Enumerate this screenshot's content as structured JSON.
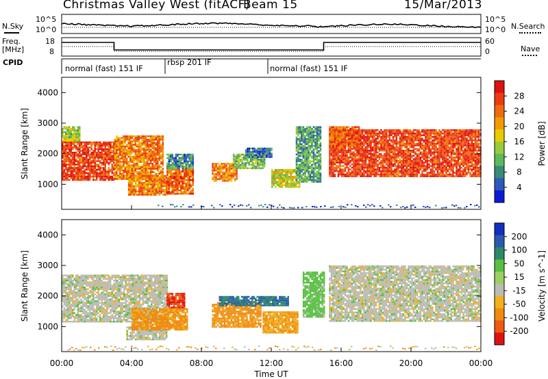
{
  "header": {
    "station_title": "Christmas Valley West (fitACF)",
    "beam_label": "Beam 15",
    "date": "15/Mar/2013"
  },
  "noise_panel": {
    "left_label": "N.Sky",
    "left_ticks": [
      "10^5",
      "10^0"
    ],
    "right_ticks": [
      "10^5",
      "10^0"
    ],
    "right_label": "N.Search"
  },
  "freq_panel": {
    "left_label_1": "Freq.",
    "left_label_2": "[MHz]",
    "left_ticks": [
      "18",
      "8"
    ],
    "right_ticks": [
      "60",
      "0"
    ],
    "right_label": "Nave"
  },
  "cpid": {
    "label": "CPID",
    "segments": [
      {
        "text": "normal (fast) 151 IF",
        "start_hour": 0,
        "end_hour": 6
      },
      {
        "text": "rbsp 201 IF",
        "start_hour": 6,
        "end_hour": 12
      },
      {
        "text": "normal (fast) 151 IF",
        "start_hour": 12,
        "end_hour": 24
      }
    ]
  },
  "x_axis": {
    "label": "Time UT",
    "ticks": [
      "00:00",
      "04:00",
      "08:00",
      "12:00",
      "16:00",
      "20:00",
      "00:00"
    ],
    "tick_hours": [
      0,
      4,
      8,
      12,
      16,
      20,
      24
    ]
  },
  "power_panel": {
    "ylabel": "Slant Range [km]",
    "y_ticks": [
      "4000",
      "3000",
      "2000",
      "1000"
    ],
    "colorbar_label": "Power [dB]",
    "colorbar_ticks": [
      "28",
      "24",
      "20",
      "16",
      "12",
      "8",
      "4"
    ],
    "colors": [
      "#0a1bd6",
      "#2f58b8",
      "#3a8a78",
      "#60b85a",
      "#9acb3a",
      "#e8cc00",
      "#f29a00",
      "#f06a10",
      "#ee3a10",
      "#e01010"
    ]
  },
  "velocity_panel": {
    "ylabel": "Slant Range [km]",
    "y_ticks": [
      "4000",
      "3000",
      "2000",
      "1000"
    ],
    "colorbar_label": "Velocity [m s^-1]",
    "colorbar_ticks": [
      "200",
      "100",
      "50",
      "15",
      "-15",
      "-50",
      "-100",
      "-200"
    ],
    "colors": [
      "#1030c0",
      "#2a5ab0",
      "#2e8a66",
      "#58c040",
      "#9ad060",
      "#bcbcb4",
      "#f0b020",
      "#f08a10",
      "#ee5a10",
      "#e01010"
    ]
  },
  "chart_data": {
    "type": "heatmap",
    "x_range_hours": [
      0,
      24
    ],
    "y_range_km": [
      180,
      4500
    ],
    "power_regions": [
      {
        "t0": 0.0,
        "t1": 3.0,
        "r0": 1150,
        "r1": 2400,
        "power": 26
      },
      {
        "t0": 0.0,
        "t1": 1.0,
        "r0": 2400,
        "r1": 2900,
        "power": 14
      },
      {
        "t0": 3.0,
        "t1": 5.8,
        "r0": 1200,
        "r1": 2600,
        "power": 22
      },
      {
        "t0": 3.8,
        "t1": 6.0,
        "r0": 650,
        "r1": 1300,
        "power": 22
      },
      {
        "t0": 6.0,
        "t1": 7.5,
        "r0": 700,
        "r1": 1500,
        "power": 24
      },
      {
        "t0": 6.0,
        "t1": 7.5,
        "r0": 1500,
        "r1": 2000,
        "power": 8
      },
      {
        "t0": 8.6,
        "t1": 10.0,
        "r0": 1100,
        "r1": 1700,
        "power": 22
      },
      {
        "t0": 9.8,
        "t1": 11.6,
        "r0": 1500,
        "r1": 2000,
        "power": 12
      },
      {
        "t0": 10.5,
        "t1": 12.0,
        "r0": 1900,
        "r1": 2200,
        "power": 6
      },
      {
        "t0": 12.0,
        "t1": 13.6,
        "r0": 900,
        "r1": 1500,
        "power": 16
      },
      {
        "t0": 13.4,
        "t1": 14.8,
        "r0": 1100,
        "r1": 2900,
        "power": 10
      },
      {
        "t0": 15.3,
        "t1": 24.0,
        "r0": 1250,
        "r1": 2800,
        "power": 26
      },
      {
        "t0": 15.3,
        "t1": 17.0,
        "r0": 2200,
        "r1": 2900,
        "power": 24
      }
    ],
    "velocity_regions": [
      {
        "t0": 0.0,
        "t1": 6.0,
        "r0": 1150,
        "r1": 2700,
        "velocity": 0
      },
      {
        "t0": 3.7,
        "t1": 6.0,
        "r0": 600,
        "r1": 1000,
        "velocity": 0
      },
      {
        "t0": 4.0,
        "t1": 7.2,
        "r0": 900,
        "r1": 1600,
        "velocity": -60
      },
      {
        "t0": 6.0,
        "t1": 7.0,
        "r0": 1600,
        "r1": 2100,
        "velocity": -200
      },
      {
        "t0": 8.6,
        "t1": 11.4,
        "r0": 1000,
        "r1": 1800,
        "velocity": -60
      },
      {
        "t0": 9.0,
        "t1": 13.0,
        "r0": 1700,
        "r1": 2000,
        "velocity": 100
      },
      {
        "t0": 11.5,
        "t1": 13.5,
        "r0": 800,
        "r1": 1500,
        "velocity": -50
      },
      {
        "t0": 13.8,
        "t1": 15.0,
        "r0": 1300,
        "r1": 2800,
        "velocity": 30
      },
      {
        "t0": 15.3,
        "t1": 24.0,
        "r0": 1200,
        "r1": 3000,
        "velocity": 0
      }
    ]
  }
}
